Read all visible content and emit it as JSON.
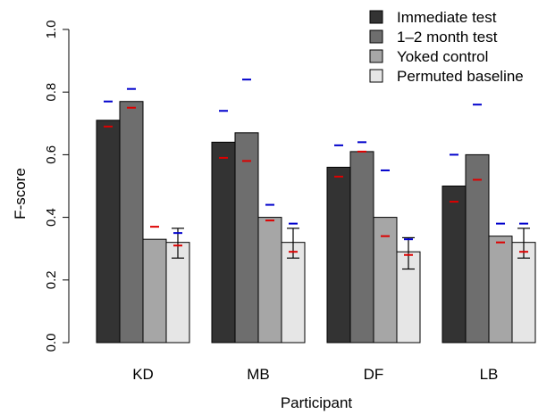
{
  "chart_data": {
    "type": "bar",
    "xlabel": "Participant",
    "ylabel": "F-score",
    "ylim": [
      0,
      1
    ],
    "yticks": [
      "0.0",
      "0.2",
      "0.4",
      "0.6",
      "0.8",
      "1.0"
    ],
    "categories": [
      "KD",
      "MB",
      "DF",
      "LB"
    ],
    "legend_position": "top-right",
    "series": [
      {
        "name": "Immediate test",
        "color": "#333333",
        "values": [
          0.71,
          0.64,
          0.56,
          0.5
        ]
      },
      {
        "name": "1–2 month test",
        "color": "#6e6e6e",
        "values": [
          0.77,
          0.67,
          0.61,
          0.6
        ]
      },
      {
        "name": "Yoked control",
        "color": "#a6a6a6",
        "values": [
          0.33,
          0.4,
          0.4,
          0.34
        ]
      },
      {
        "name": "Permuted baseline",
        "color": "#e6e6e6",
        "values": [
          0.32,
          0.32,
          0.29,
          0.32
        ]
      }
    ],
    "error_bars": [
      {
        "series": "Permuted baseline",
        "low": [
          0.27,
          0.27,
          0.235,
          0.27
        ],
        "high": [
          0.365,
          0.365,
          0.335,
          0.365
        ]
      }
    ],
    "markers": {
      "upper_color": "#0000cc",
      "lower_color": "#dd0000",
      "upper": [
        [
          0.77,
          0.81,
          null,
          0.35
        ],
        [
          0.74,
          0.84,
          0.44,
          0.38
        ],
        [
          0.63,
          0.64,
          0.55,
          0.33
        ],
        [
          0.6,
          0.76,
          0.38,
          0.38
        ]
      ],
      "lower": [
        [
          0.69,
          0.75,
          0.37,
          0.31
        ],
        [
          0.59,
          0.58,
          0.39,
          0.29
        ],
        [
          0.53,
          0.61,
          0.34,
          0.28
        ],
        [
          0.45,
          0.52,
          0.32,
          0.29
        ]
      ]
    }
  }
}
